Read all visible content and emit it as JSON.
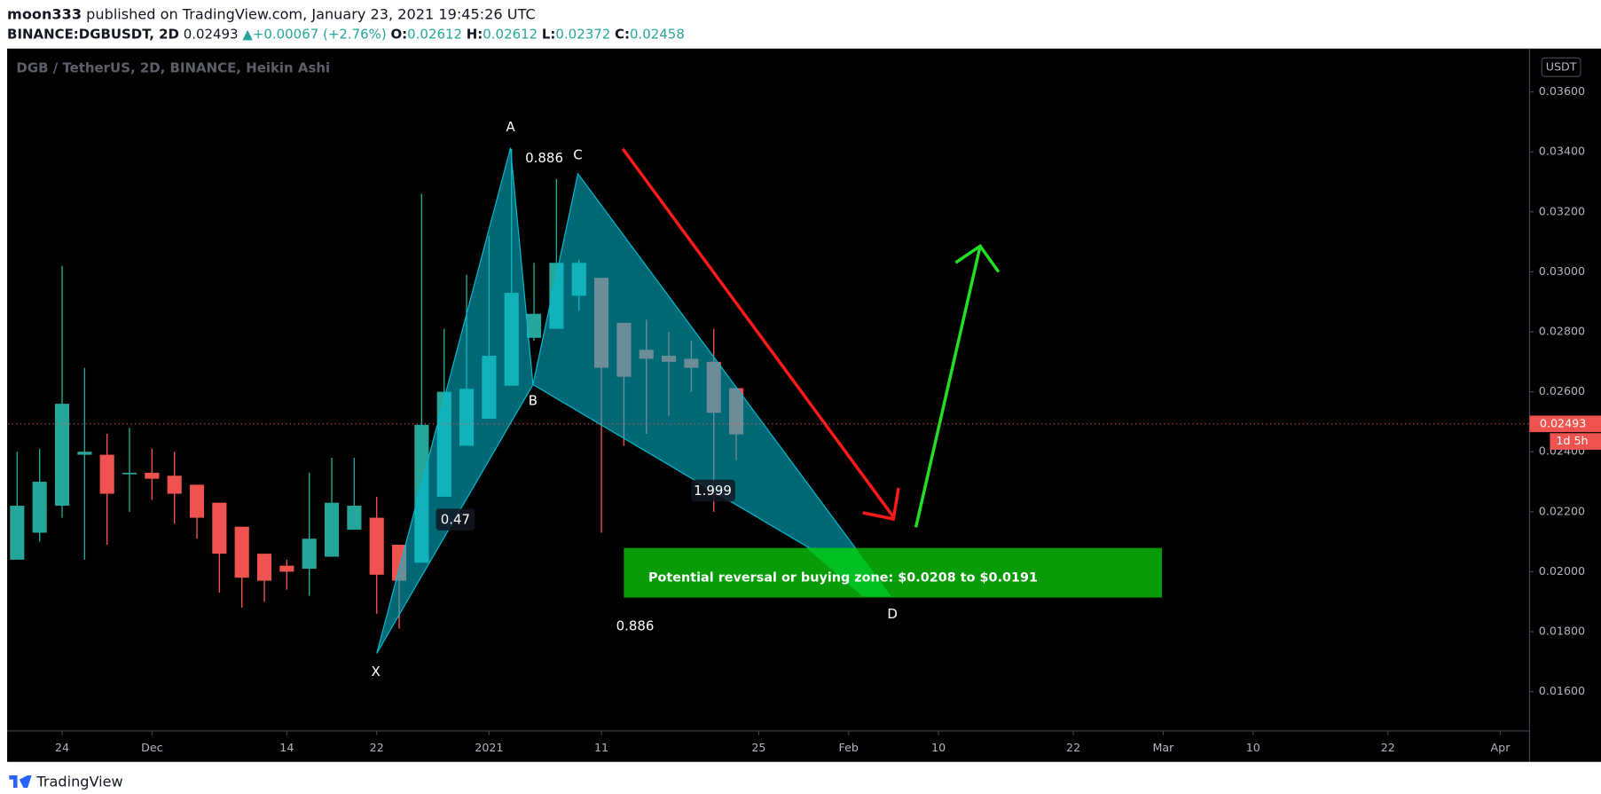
{
  "header": {
    "author": "moon333",
    "published": "published on TradingView.com, January 23, 2021 19:45:26 UTC",
    "symbol": "BINANCE:DGBUSDT, 2D",
    "last": "0.02493",
    "arrow": "▲",
    "change": "+0.00067 (+2.76%)",
    "o_label": "O:",
    "o": "0.02612",
    "h_label": "H:",
    "h": "0.02612",
    "l_label": "L:",
    "l": "0.02372",
    "c_label": "C:",
    "c": "0.02458"
  },
  "footer": {
    "brand": "TradingView"
  },
  "chart_data": {
    "type": "candlestick",
    "title": "DGB / TetherUS, 2D, BINANCE, Heikin Ashi",
    "currency": "USDT",
    "up_color": "#26a69a",
    "down_color": "#ef5350",
    "grid": false,
    "x": [
      -4,
      -2,
      0,
      2,
      4,
      6,
      8,
      10,
      12,
      14,
      16,
      18,
      20,
      22,
      24,
      26,
      28,
      30,
      32,
      34,
      36,
      38,
      40,
      42,
      44,
      46,
      48,
      50,
      52,
      54,
      56,
      58,
      60
    ],
    "open": [
      0.0204,
      0.0213,
      0.0222,
      0.0239,
      0.0239,
      0.0233,
      0.0233,
      0.0232,
      0.0229,
      0.0223,
      0.0215,
      0.0206,
      0.0202,
      0.0201,
      0.0205,
      0.0214,
      0.0218,
      0.0209,
      0.0203,
      0.0225,
      0.0242,
      0.0251,
      0.0262,
      0.0278,
      0.0281,
      0.0292,
      0.0298,
      0.0283,
      0.0274,
      0.0272,
      0.0271,
      0.027,
      0.02612
    ],
    "high": [
      0.024,
      0.0241,
      0.0302,
      0.0268,
      0.0246,
      0.0248,
      0.0241,
      0.024,
      0.0229,
      0.0223,
      0.0215,
      0.0206,
      0.0204,
      0.0233,
      0.0238,
      0.0238,
      0.0225,
      0.0209,
      0.0326,
      0.0281,
      0.0299,
      0.0312,
      0.0341,
      0.0303,
      0.0331,
      0.0304,
      0.0298,
      0.0283,
      0.0284,
      0.028,
      0.0277,
      0.0281,
      0.02612
    ],
    "low": [
      0.0204,
      0.021,
      0.0218,
      0.0204,
      0.0209,
      0.022,
      0.0224,
      0.0216,
      0.0211,
      0.0193,
      0.0188,
      0.019,
      0.0194,
      0.0192,
      0.0205,
      0.0214,
      0.0186,
      0.0181,
      0.0203,
      0.0225,
      0.0242,
      0.0251,
      0.0262,
      0.0277,
      0.0281,
      0.0287,
      0.0213,
      0.0242,
      0.0246,
      0.0252,
      0.026,
      0.022,
      0.02372
    ],
    "close": [
      0.0222,
      0.023,
      0.0256,
      0.024,
      0.0226,
      0.0233,
      0.0231,
      0.0226,
      0.0218,
      0.0206,
      0.0198,
      0.0197,
      0.02,
      0.0211,
      0.0223,
      0.0222,
      0.0199,
      0.0197,
      0.0249,
      0.026,
      0.0261,
      0.0272,
      0.0293,
      0.0286,
      0.0303,
      0.0303,
      0.0268,
      0.0265,
      0.0271,
      0.027,
      0.0268,
      0.0253,
      0.02458
    ],
    "xlim": [
      -4.8,
      130.6
    ],
    "xticks": [
      {
        "value": 0,
        "label": "24"
      },
      {
        "value": 8,
        "label": "Dec"
      },
      {
        "value": 20,
        "label": "14"
      },
      {
        "value": 28,
        "label": "22"
      },
      {
        "value": 38,
        "label": "2021"
      },
      {
        "value": 48,
        "label": "11"
      },
      {
        "value": 62,
        "label": "25"
      },
      {
        "value": 70,
        "label": "Feb"
      },
      {
        "value": 78,
        "label": "10"
      },
      {
        "value": 90,
        "label": "22"
      },
      {
        "value": 98,
        "label": "Mar"
      },
      {
        "value": 106,
        "label": "10"
      },
      {
        "value": 118,
        "label": "22"
      },
      {
        "value": 128,
        "label": "Apr"
      }
    ],
    "ylim": [
      0.01469,
      0.03741
    ],
    "yticks": [
      {
        "value": 0.016,
        "label": "0.01600"
      },
      {
        "value": 0.018,
        "label": "0.01800"
      },
      {
        "value": 0.02,
        "label": "0.02000"
      },
      {
        "value": 0.022,
        "label": "0.02200"
      },
      {
        "value": 0.024,
        "label": "0.02400"
      },
      {
        "value": 0.026,
        "label": "0.02600"
      },
      {
        "value": 0.028,
        "label": "0.02800"
      },
      {
        "value": 0.03,
        "label": "0.03000"
      },
      {
        "value": 0.032,
        "label": "0.03200"
      },
      {
        "value": 0.034,
        "label": "0.03400"
      },
      {
        "value": 0.036,
        "label": "0.03600"
      }
    ],
    "current_price": 0.02493,
    "countdown": "1d 5h",
    "annotations": [
      {
        "text": "A"
      },
      {
        "text": "B"
      },
      {
        "text": "C"
      },
      {
        "text": "D"
      },
      {
        "text": "X"
      },
      {
        "text": "0.886"
      },
      {
        "text": "0.47"
      },
      {
        "text": "1.999"
      },
      {
        "text": "0.886"
      },
      {
        "text": "Potential reversal or buying zone: $0.0208 to $0.0191"
      }
    ]
  }
}
